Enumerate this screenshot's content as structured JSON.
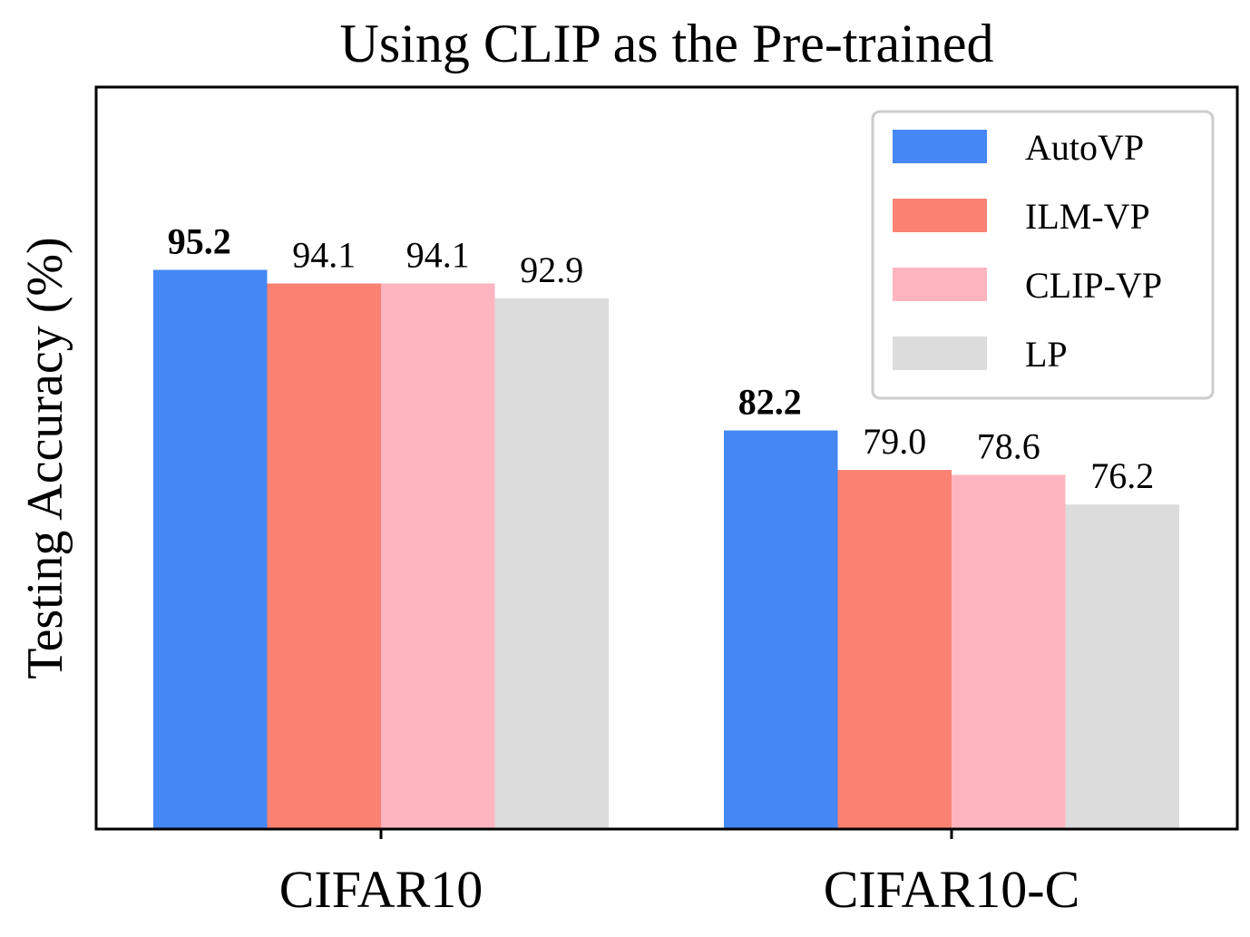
{
  "chart_data": {
    "type": "bar",
    "title": "Using CLIP as the Pre-trained",
    "xlabel": "",
    "ylabel": "Testing Accuracy (%)",
    "categories": [
      "CIFAR10",
      "CIFAR10-C"
    ],
    "series": [
      {
        "name": "AutoVP",
        "values": [
          95.2,
          82.2
        ],
        "labels": [
          "95.2",
          "82.2"
        ],
        "color": "#4487f5",
        "bold_labels": true
      },
      {
        "name": "ILM-VP",
        "values": [
          94.1,
          79.0
        ],
        "labels": [
          "94.1",
          "79.0"
        ],
        "color": "#f98272",
        "bold_labels": false
      },
      {
        "name": "CLIP-VP",
        "values": [
          94.1,
          78.6
        ],
        "labels": [
          "94.1",
          "78.6"
        ],
        "color": "#ffb5c0",
        "bold_labels": false
      },
      {
        "name": "LP",
        "values": [
          92.9,
          76.2
        ],
        "labels": [
          "92.9",
          "76.2"
        ],
        "color": "#dcdcdc",
        "bold_labels": false
      }
    ],
    "ylim": [
      50,
      110
    ],
    "grid": false,
    "legend_position": "top-right"
  }
}
